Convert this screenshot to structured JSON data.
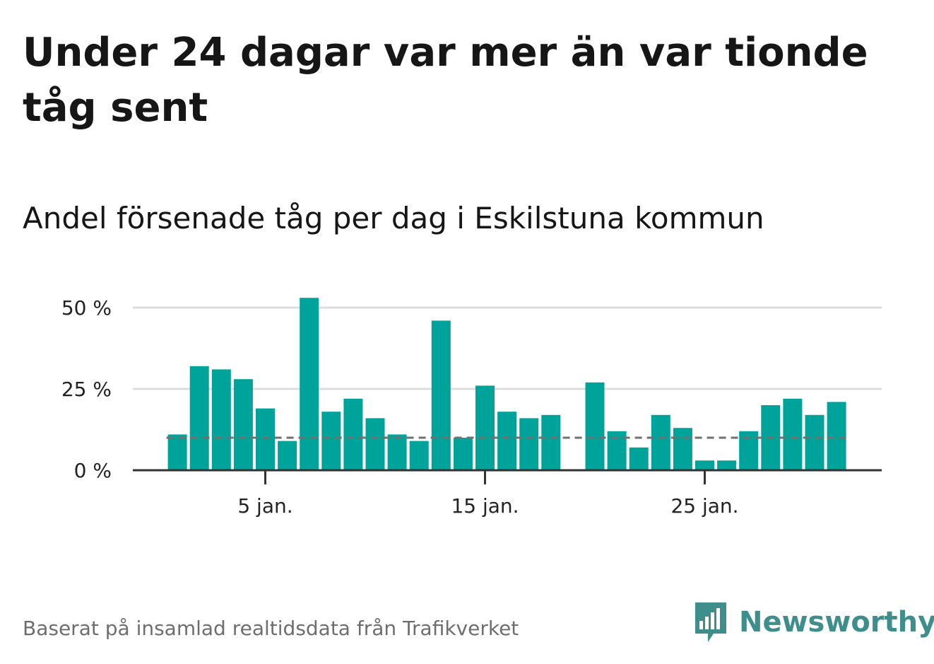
{
  "title": "Under 24 dagar var mer än var tionde tåg sent",
  "subtitle": "Andel försenade tåg per dag i Eskilstuna kommun",
  "source": "Baserat på insamlad realtidsdata från Trafikverket",
  "brand": {
    "name": "Newsworthy",
    "icon": "newsworthy-logo-icon"
  },
  "colors": {
    "bar": "#00a39a",
    "reference": "#707070",
    "grid": "#dcdcdc",
    "axis": "#333333",
    "brand": "#3e8e8c"
  },
  "chart_data": {
    "type": "bar",
    "title": "Andel försenade tåg per dag i Eskilstuna kommun",
    "xlabel": "",
    "ylabel": "",
    "x": [
      1,
      2,
      3,
      4,
      5,
      6,
      7,
      8,
      9,
      10,
      11,
      12,
      13,
      14,
      15,
      16,
      17,
      18,
      19,
      20,
      21,
      22,
      23,
      24,
      25,
      26,
      27,
      28,
      29,
      30,
      31
    ],
    "values": [
      11,
      32,
      31,
      28,
      19,
      9,
      53,
      18,
      22,
      16,
      11,
      9,
      46,
      10,
      26,
      18,
      16,
      17,
      null,
      27,
      12,
      7,
      17,
      13,
      3,
      3,
      12,
      20,
      22,
      17,
      21
    ],
    "x_ticks": [
      {
        "value": 5,
        "label": "5 jan."
      },
      {
        "value": 15,
        "label": "15 jan."
      },
      {
        "value": 25,
        "label": "25 jan."
      }
    ],
    "y_ticks": [
      {
        "value": 0,
        "label": "0 %"
      },
      {
        "value": 25,
        "label": "25 %"
      },
      {
        "value": 50,
        "label": "50 %"
      }
    ],
    "ylim": [
      0,
      50
    ],
    "reference_line": 10,
    "grid": true
  }
}
